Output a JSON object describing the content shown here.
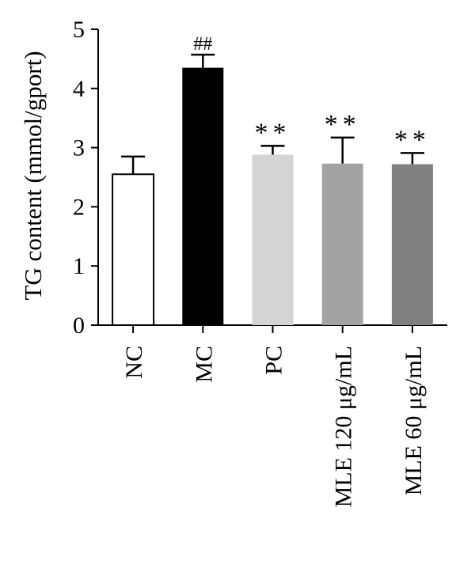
{
  "chart_data": {
    "type": "bar",
    "title": "",
    "xlabel": "",
    "ylabel": "TG content (mmol/gport)",
    "ylim": [
      0,
      5
    ],
    "yticks": [
      "0",
      "1",
      "2",
      "3",
      "4",
      "5"
    ],
    "grid": false,
    "categories": [
      "NC",
      "MC",
      "PC",
      "MLE 120 μg/mL",
      "MLE 60 μg/mL"
    ],
    "values": [
      2.55,
      4.35,
      2.88,
      2.73,
      2.72
    ],
    "errors": [
      0.3,
      0.22,
      0.15,
      0.44,
      0.19
    ],
    "annotations": [
      "",
      "##",
      "**",
      "**",
      "**"
    ],
    "colors": [
      "#ffffff",
      "#000000",
      "#d4d4d4",
      "#a3a3a3",
      "#808080"
    ]
  }
}
